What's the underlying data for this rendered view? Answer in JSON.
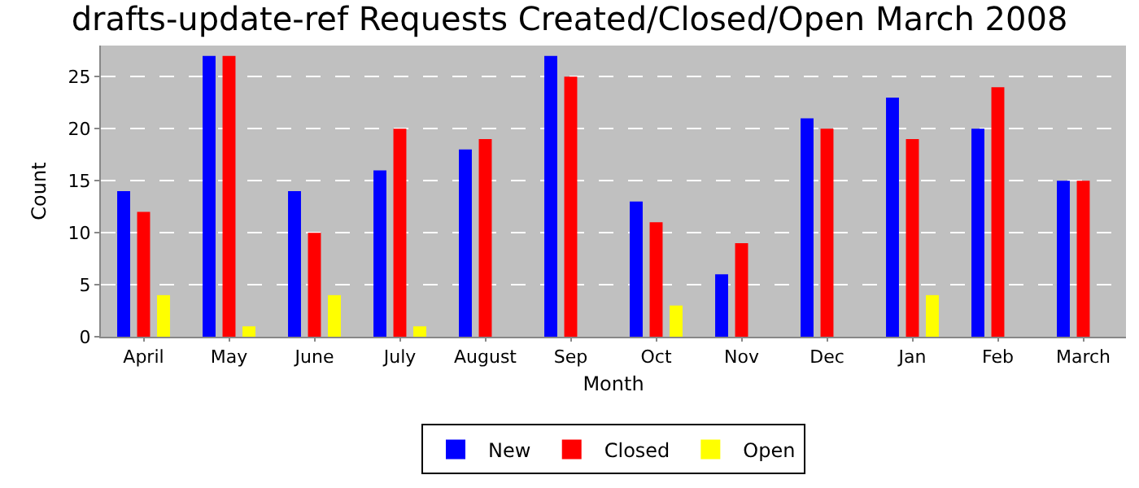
{
  "chart_data": {
    "type": "bar",
    "title": "drafts-update-ref Requests Created/Closed/Open March 2008",
    "xlabel": "Month",
    "ylabel": "Count",
    "categories": [
      "April",
      "May",
      "June",
      "July",
      "August",
      "Sep",
      "Oct",
      "Nov",
      "Dec",
      "Jan",
      "Feb",
      "March"
    ],
    "series": [
      {
        "name": "New",
        "color": "#0000ff",
        "values": [
          14,
          27,
          14,
          16,
          18,
          27,
          13,
          6,
          21,
          23,
          20,
          15
        ]
      },
      {
        "name": "Closed",
        "color": "#ff0000",
        "values": [
          12,
          27,
          10,
          20,
          19,
          25,
          11,
          9,
          20,
          19,
          24,
          15
        ]
      },
      {
        "name": "Open",
        "color": "#ffff00",
        "values": [
          4,
          1,
          4,
          1,
          0,
          0,
          3,
          0,
          0,
          4,
          0,
          0
        ]
      }
    ],
    "ylim": [
      0,
      28
    ],
    "yticks": [
      0,
      5,
      10,
      15,
      20,
      25
    ],
    "grid": "y",
    "legend": "bottom"
  }
}
